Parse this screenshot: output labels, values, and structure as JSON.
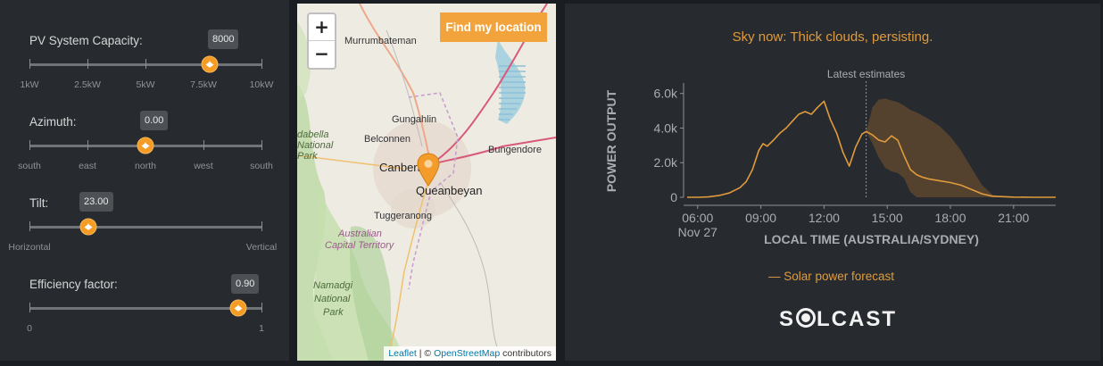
{
  "controls": {
    "capacity": {
      "label": "PV System Capacity:",
      "value": "8000",
      "ticks": [
        "1kW",
        "2.5kW",
        "5kW",
        "7.5kW",
        "10kW"
      ],
      "fraction": 0.778
    },
    "azimuth": {
      "label": "Azimuth:",
      "value": "0.00",
      "ticks": [
        "south",
        "east",
        "north",
        "west",
        "south"
      ],
      "fraction": 0.5
    },
    "tilt": {
      "label": "Tilt:",
      "value": "23.00",
      "ticks": [
        "Horizontal",
        "Vertical"
      ],
      "fraction": 0.2556
    },
    "efficiency": {
      "label": "Efficiency factor:",
      "value": "0.90",
      "ticks": [
        "0",
        "1"
      ],
      "fraction": 0.9
    }
  },
  "map": {
    "zoom_in": "+",
    "zoom_out": "−",
    "find_button": "Find my location",
    "places": {
      "murrumbateman": "Murrumbateman",
      "gungahlin": "Gungahlin",
      "belconnen": "Belconnen",
      "canberra": "Canberra",
      "bungendore": "Bungendore",
      "queanbeyan": "Queanbeyan",
      "tuggeranong": "Tuggeranong",
      "act1": "Australian",
      "act2": "Capital Territory",
      "namadgi1": "Namadgi",
      "namadgi2": "National",
      "namadgi3": "Park",
      "brindabella1": "dabella",
      "brindabella2": "National",
      "brindabella3": "Park"
    },
    "attribution": {
      "leaflet": "Leaflet",
      "sep": " | © ",
      "osm": "OpenStreetMap",
      "suffix": " contributors"
    }
  },
  "chart_panel": {
    "sky_status": "Sky now: Thick clouds, persisting.",
    "legend": "— Solar power forecast",
    "logo": "SOLCAST"
  },
  "chart_data": {
    "type": "area",
    "ylabel": "POWER OUTPUT",
    "xlabel": "LOCAL TIME (AUSTRALIA/SYDNEY)",
    "ylim": [
      0,
      6500
    ],
    "xlim": [
      5.5,
      23.0
    ],
    "y_ticks": [
      0,
      2000,
      4000,
      6000
    ],
    "y_tick_labels": [
      "0",
      "2.0k",
      "4.0k",
      "6.0k"
    ],
    "x_ticks": [
      6,
      9,
      12,
      15,
      18,
      21
    ],
    "x_tick_labels": [
      "06:00",
      "09:00",
      "12:00",
      "15:00",
      "18:00",
      "21:00"
    ],
    "x_date_label": "Nov 27",
    "annotation": {
      "x": 14.0,
      "label": "Latest estimates"
    },
    "series": [
      {
        "name": "Solar power forecast",
        "x": [
          5.5,
          6.0,
          6.5,
          7.0,
          7.5,
          8.0,
          8.3,
          8.6,
          8.9,
          9.1,
          9.3,
          9.6,
          9.9,
          10.2,
          10.5,
          10.8,
          11.1,
          11.4,
          11.7,
          12.0,
          12.3,
          12.6,
          12.9,
          13.2,
          13.5,
          13.8,
          14.0,
          14.3,
          14.6,
          14.9,
          15.2,
          15.5,
          15.8,
          16.1,
          16.4,
          16.7,
          17.0,
          17.5,
          18.0,
          18.5,
          19.0,
          19.5,
          20.0,
          21.0,
          22.0,
          23.0
        ],
        "values": [
          0,
          0,
          20,
          100,
          250,
          550,
          900,
          1600,
          2700,
          3100,
          2950,
          3300,
          3700,
          4000,
          4400,
          4800,
          4950,
          4800,
          5200,
          5550,
          4500,
          3700,
          2600,
          1800,
          2900,
          3650,
          3800,
          3600,
          3300,
          3200,
          3550,
          3300,
          2400,
          1600,
          1300,
          1150,
          1050,
          950,
          850,
          700,
          450,
          200,
          60,
          10,
          0,
          0
        ]
      }
    ],
    "uncertainty_band": {
      "x": [
        14.0,
        14.3,
        14.6,
        14.9,
        15.2,
        15.5,
        15.8,
        16.1,
        16.4,
        16.7,
        17.0,
        17.5,
        18.0,
        18.5,
        19.0,
        19.5,
        20.0,
        20.5
      ],
      "upper": [
        3800,
        5200,
        5650,
        5700,
        5600,
        5500,
        5300,
        5050,
        4900,
        4700,
        4500,
        4100,
        3500,
        2700,
        1700,
        700,
        150,
        0
      ],
      "lower": [
        3800,
        3100,
        2300,
        1700,
        1500,
        1400,
        1100,
        300,
        0,
        0,
        0,
        0,
        0,
        0,
        0,
        0,
        0,
        0
      ]
    },
    "colors": {
      "line": "#e09b3c",
      "band": "#5a4530",
      "bg": "#272b30",
      "axis": "#8e9397"
    }
  }
}
